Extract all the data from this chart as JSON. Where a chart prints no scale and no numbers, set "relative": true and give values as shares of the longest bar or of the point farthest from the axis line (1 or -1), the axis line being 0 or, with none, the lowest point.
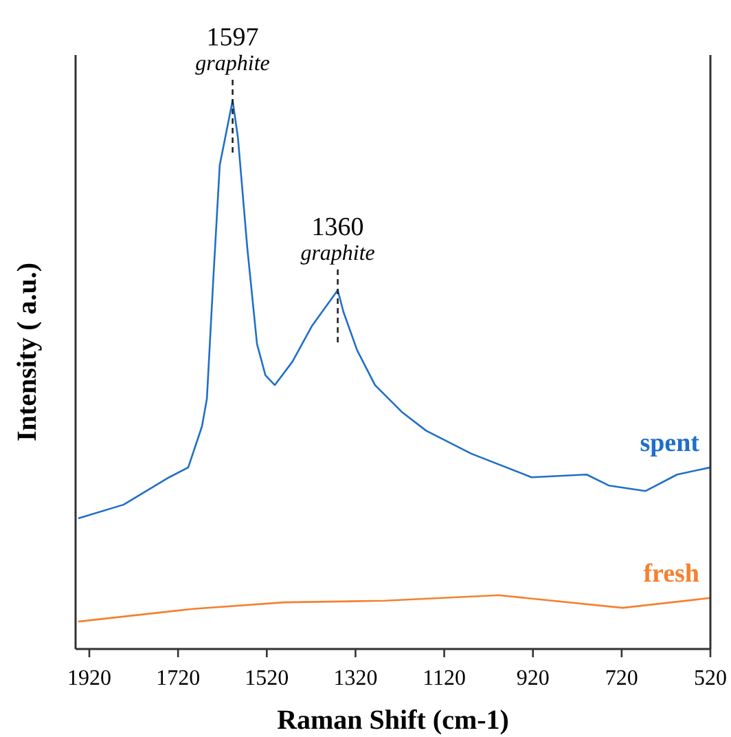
{
  "chart_data": {
    "type": "line",
    "relative": true,
    "xlabel": "Raman Shift (cm-1)",
    "ylabel": "Intensity ( a.u.)",
    "xlim": [
      1951,
      520
    ],
    "xticks": [
      1920,
      1720,
      1520,
      1320,
      1120,
      920,
      720,
      520
    ],
    "grid": false,
    "annotations": [
      {
        "text": "1597\ngraphite",
        "x": 1597,
        "y": 1
      },
      {
        "text": "1360\ngraphite",
        "x": 1360,
        "y": 0.654
      }
    ],
    "series": [
      {
        "name": "spent",
        "color": "#1f6fc8",
        "x": [
          1945,
          1843,
          1740,
          1697,
          1666,
          1655,
          1640,
          1626,
          1597,
          1585,
          1564,
          1542,
          1523,
          1502,
          1462,
          1418,
          1360,
          1347,
          1316,
          1276,
          1214,
          1161,
          1059,
          923,
          799,
          749,
          666,
          595,
          520
        ],
        "values": [
          0.238,
          0.263,
          0.313,
          0.331,
          0.406,
          0.456,
          0.682,
          0.882,
          1,
          0.932,
          0.732,
          0.556,
          0.499,
          0.481,
          0.524,
          0.589,
          0.654,
          0.614,
          0.544,
          0.481,
          0.431,
          0.398,
          0.356,
          0.313,
          0.318,
          0.298,
          0.288,
          0.318,
          0.331
        ]
      },
      {
        "name": "fresh",
        "color": "#f5802e",
        "x": [
          1945,
          1688,
          1480,
          1254,
          997,
          718,
          520
        ],
        "values": [
          0.05,
          0.073,
          0.085,
          0.088,
          0.098,
          0.075,
          0.093
        ]
      }
    ]
  }
}
